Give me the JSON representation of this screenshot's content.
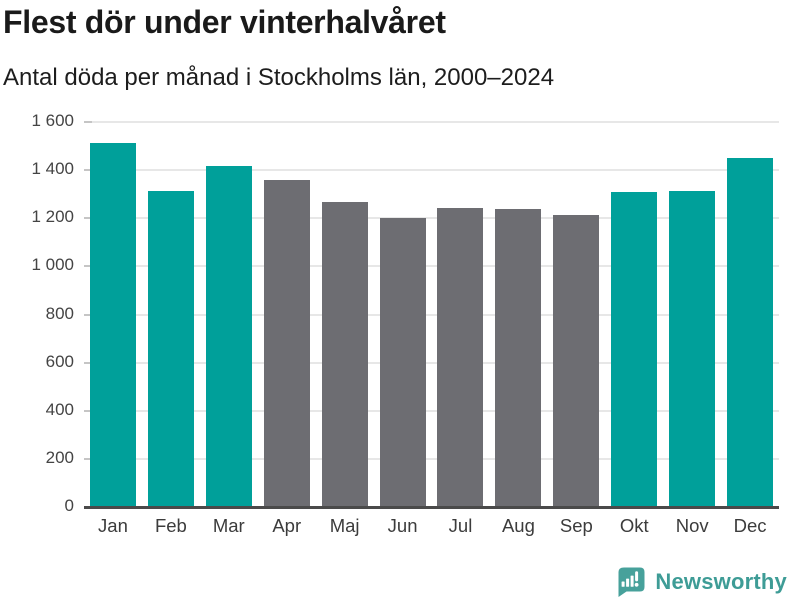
{
  "chart_data": {
    "type": "bar",
    "title": "Flest dör under vinterhalvåret",
    "subtitle": "Antal döda per månad i Stockholms län, 2000–2024",
    "categories": [
      "Jan",
      "Feb",
      "Mar",
      "Apr",
      "Maj",
      "Jun",
      "Jul",
      "Aug",
      "Sep",
      "Okt",
      "Nov",
      "Dec"
    ],
    "values": [
      1510,
      1310,
      1415,
      1355,
      1265,
      1195,
      1240,
      1235,
      1210,
      1305,
      1310,
      1445
    ],
    "bar_colors": [
      "highlight",
      "highlight",
      "highlight",
      "other",
      "other",
      "other",
      "other",
      "other",
      "other",
      "highlight",
      "highlight",
      "highlight"
    ],
    "palette": {
      "highlight": "#00A09A",
      "other": "#6D6D72"
    },
    "xlabel": "",
    "ylabel": "",
    "ylim": [
      0,
      1600
    ],
    "grid": true,
    "legend_position": "none",
    "yticks": [
      {
        "value": 1600,
        "label": "1 600"
      },
      {
        "value": 1400,
        "label": "1 400"
      },
      {
        "value": 1200,
        "label": "1 200"
      },
      {
        "value": 1000,
        "label": "1 000"
      },
      {
        "value": 800,
        "label": "800"
      },
      {
        "value": 600,
        "label": "600"
      },
      {
        "value": 400,
        "label": "400"
      },
      {
        "value": 200,
        "label": "200"
      },
      {
        "value": 0,
        "label": "0"
      }
    ]
  },
  "branding": {
    "brand_name": "Newsworthy",
    "brand_text_color": "#3E9C96",
    "logo_icon": "bar-chart-speech-bubble-icon",
    "logo_bg_color": "#47A19B",
    "logo_glyph_color": "#FFFFFF"
  }
}
